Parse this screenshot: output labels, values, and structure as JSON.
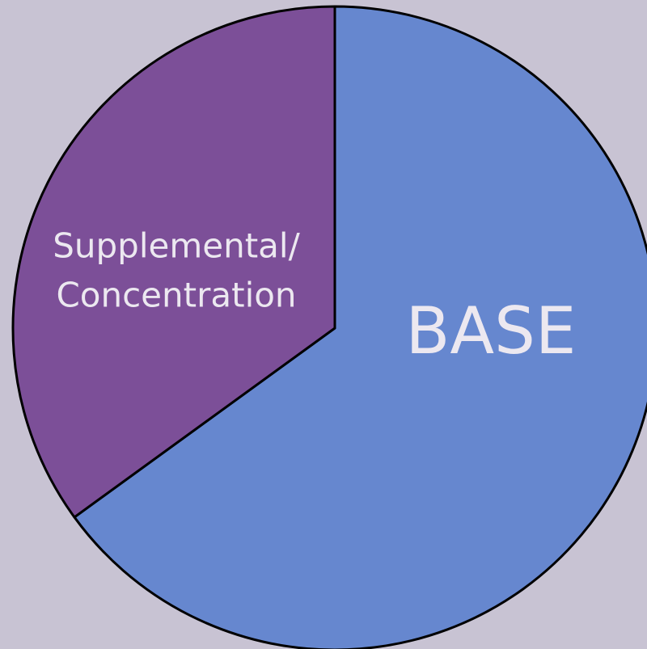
{
  "chart_data": {
    "type": "pie",
    "categories": [
      "BASE",
      "Supplemental/\nConcentration"
    ],
    "values": [
      65,
      35
    ],
    "colors": [
      "#6687cf",
      "#7c4f98"
    ],
    "background": "#c8c3d3"
  }
}
